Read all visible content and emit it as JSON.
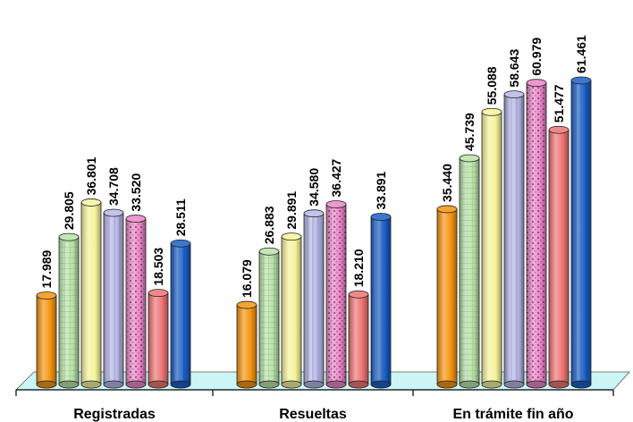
{
  "chart_data": {
    "type": "bar",
    "categories": [
      "Registradas",
      "Resueltas",
      "En trámite fin año"
    ],
    "series": [
      {
        "values": [
          17989,
          16079,
          35440
        ],
        "labels": [
          "17.989",
          "16.079",
          "35.440"
        ],
        "color": "#f5940f",
        "pattern": "plain"
      },
      {
        "values": [
          29805,
          26883,
          45739
        ],
        "labels": [
          "29.805",
          "26.883",
          "45.739"
        ],
        "color": "#b9e3a8",
        "pattern": "grid"
      },
      {
        "values": [
          36801,
          29891,
          55088
        ],
        "labels": [
          "36.801",
          "29.891",
          "55.088"
        ],
        "color": "#f6f39a",
        "pattern": "plain"
      },
      {
        "values": [
          34708,
          34580,
          58643
        ],
        "labels": [
          "34.708",
          "34.580",
          "58.643"
        ],
        "color": "#b7b7e8",
        "pattern": "stripe"
      },
      {
        "values": [
          33520,
          36427,
          60979
        ],
        "labels": [
          "33.520",
          "36.427",
          "60.979"
        ],
        "color": "#ea86c8",
        "pattern": "dots"
      },
      {
        "values": [
          18503,
          18210,
          51477
        ],
        "labels": [
          "18.503",
          "18.210",
          "51.477"
        ],
        "color": "#ee7373",
        "pattern": "plain"
      },
      {
        "values": [
          28511,
          33891,
          61461
        ],
        "labels": [
          "28.511",
          "33.891",
          "61.461"
        ],
        "color": "#1a5fc8",
        "pattern": "stripe"
      }
    ],
    "ylim": [
      0,
      70000
    ],
    "grid": false,
    "legend": false
  }
}
